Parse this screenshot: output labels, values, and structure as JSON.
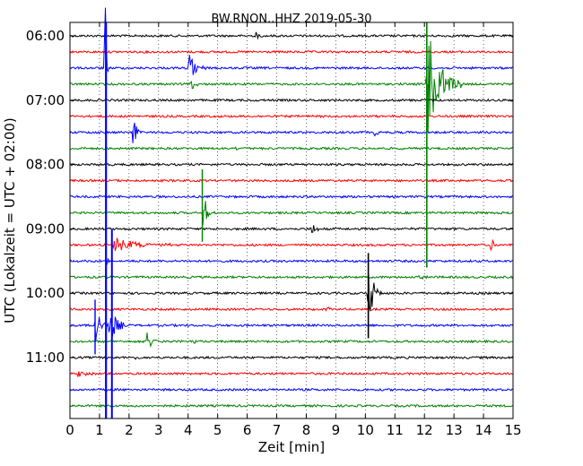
{
  "chart_data": {
    "type": "line",
    "title": "BW.RNON..HHZ 2019-05-30",
    "xlabel": "Zeit  [min]",
    "ylabel": "UTC (Lokalzeit = UTC + 02:00)",
    "xlim": [
      0,
      15
    ],
    "x_ticks": [
      "0",
      "1",
      "2",
      "3",
      "4",
      "5",
      "6",
      "7",
      "8",
      "9",
      "10",
      "11",
      "12",
      "13",
      "14",
      "15"
    ],
    "y_tick_labels": [
      {
        "row": 0,
        "label": "06:00"
      },
      {
        "row": 4,
        "label": "07:00"
      },
      {
        "row": 8,
        "label": "08:00"
      },
      {
        "row": 12,
        "label": "09:00"
      },
      {
        "row": 16,
        "label": "10:00"
      },
      {
        "row": 20,
        "label": "11:00"
      }
    ],
    "grid": "vertical dotted",
    "trace_colors": [
      "#000000",
      "#ff0000",
      "#0000ff",
      "#008000"
    ],
    "traces": [
      {
        "start": "06:00",
        "events": [
          {
            "t": 6.3,
            "amp": 0.25,
            "dur": 0.2
          }
        ]
      },
      {
        "start": "06:15",
        "events": []
      },
      {
        "start": "06:30",
        "events": [
          {
            "t": 4.05,
            "amp": 1.0,
            "dur": 0.6
          },
          {
            "t": 1.2,
            "amp": 5,
            "dur": 0.1
          }
        ]
      },
      {
        "start": "06:45",
        "events": [
          {
            "t": 12.1,
            "amp": 4,
            "dur": 1.2
          },
          {
            "t": 4.1,
            "amp": 0.6,
            "dur": 0.3
          }
        ]
      },
      {
        "start": "07:00",
        "events": []
      },
      {
        "start": "07:15",
        "events": []
      },
      {
        "start": "07:30",
        "events": [
          {
            "t": 2.15,
            "amp": 1.5,
            "dur": 0.3
          },
          {
            "t": 10.3,
            "amp": 0.35,
            "dur": 0.3
          }
        ]
      },
      {
        "start": "07:45",
        "events": [
          {
            "t": 5.65,
            "amp": 0.25,
            "dur": 0.2
          }
        ]
      },
      {
        "start": "08:00",
        "events": []
      },
      {
        "start": "08:15",
        "events": []
      },
      {
        "start": "08:30",
        "events": []
      },
      {
        "start": "08:45",
        "events": [
          {
            "t": 4.5,
            "amp": 1.5,
            "dur": 0.4
          }
        ]
      },
      {
        "start": "09:00",
        "events": [
          {
            "t": 8.2,
            "amp": 0.6,
            "dur": 0.3
          }
        ]
      },
      {
        "start": "09:15",
        "events": [
          {
            "t": 1.5,
            "amp": 0.5,
            "dur": 2.2
          },
          {
            "t": 14.25,
            "amp": 0.7,
            "dur": 0.2
          }
        ]
      },
      {
        "start": "09:30",
        "events": [
          {
            "t": 1.25,
            "amp": 0.3,
            "dur": 0.5
          }
        ]
      },
      {
        "start": "09:45",
        "events": [
          {
            "t": 11.8,
            "amp": 0.2,
            "dur": 0.4
          }
        ]
      },
      {
        "start": "10:00",
        "events": [
          {
            "t": 10.1,
            "amp": 2.5,
            "dur": 0.5
          },
          {
            "t": 7.2,
            "amp": 0.2,
            "dur": 0.1
          }
        ]
      },
      {
        "start": "10:15",
        "events": [
          {
            "t": 8.7,
            "amp": 0.25,
            "dur": 0.2
          }
        ]
      },
      {
        "start": "10:30",
        "events": [
          {
            "t": 0.85,
            "amp": 1.5,
            "dur": 0.5
          },
          {
            "t": 1.35,
            "amp": 1.5,
            "dur": 0.6
          }
        ]
      },
      {
        "start": "10:45",
        "events": [
          {
            "t": 2.6,
            "amp": 0.7,
            "dur": 0.5
          },
          {
            "t": 4.2,
            "amp": 0.2,
            "dur": 0.3
          }
        ]
      },
      {
        "start": "11:00",
        "events": [
          {
            "t": 2.2,
            "amp": 0.15,
            "dur": 0.3
          }
        ]
      },
      {
        "start": "11:15",
        "events": [
          {
            "t": 0.2,
            "amp": 0.3,
            "dur": 0.8
          }
        ]
      },
      {
        "start": "11:30",
        "events": []
      },
      {
        "start": "11:45",
        "events": []
      }
    ]
  }
}
